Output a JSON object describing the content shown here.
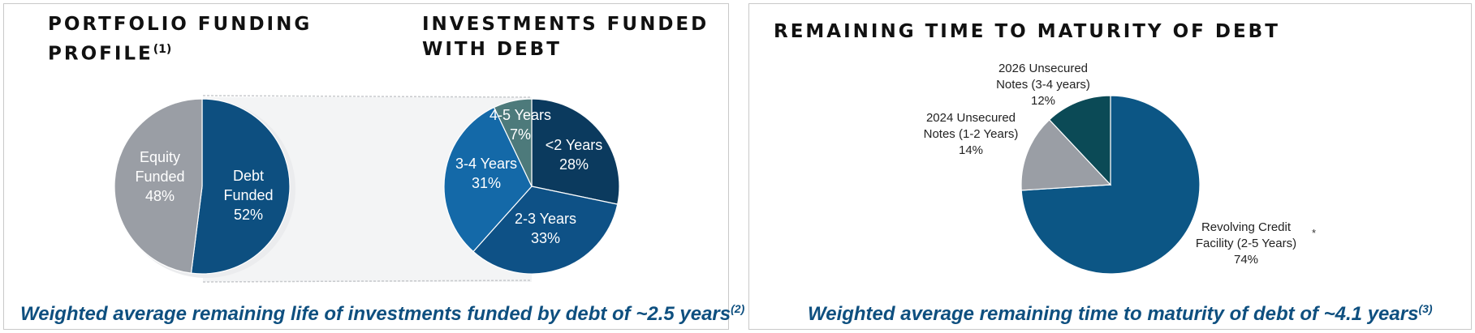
{
  "left_panel": {
    "funding_title_line1": "PORTFOLIO FUNDING",
    "funding_title_line2": "PROFILE",
    "funding_title_sup": "(1)",
    "debt_title_line1": "INVESTMENTS FUNDED",
    "debt_title_line2": "WITH DEBT",
    "footnote_text": "Weighted average remaining life of investments funded by debt of ~2.5 years",
    "footnote_sup": "(2)"
  },
  "right_panel": {
    "title": "REMAINING TIME TO MATURITY OF DEBT",
    "footnote_text": "Weighted average remaining time to maturity of debt of ~4.1 years",
    "footnote_sup": "(3)",
    "asterisk": "*"
  },
  "chart_data": [
    {
      "type": "pie",
      "title": "PORTFOLIO FUNDING PROFILE(1)",
      "slices": [
        {
          "label": [
            "Debt",
            "Funded",
            "52%"
          ],
          "category": "Debt Funded",
          "value": 52,
          "color": "#0d4f80"
        },
        {
          "label": [
            "Equity",
            "Funded",
            "48%"
          ],
          "category": "Equity Funded",
          "value": 48,
          "color": "#9a9ea5"
        }
      ]
    },
    {
      "type": "pie",
      "title": "INVESTMENTS FUNDED WITH DEBT",
      "slices": [
        {
          "label": [
            "<2 Years",
            "28%"
          ],
          "category": "<2 Years",
          "value": 28,
          "color": "#0b3a5e"
        },
        {
          "label": [
            "2-3 Years",
            "33%"
          ],
          "category": "2-3 Years",
          "value": 33,
          "color": "#0e5186"
        },
        {
          "label": [
            "3-4 Years",
            "31%"
          ],
          "category": "3-4 Years",
          "value": 31,
          "color": "#1469a8"
        },
        {
          "label": [
            "4-5 Years",
            "7%"
          ],
          "category": "4-5 Years",
          "value": 7,
          "color": "#4d7a7b"
        }
      ]
    },
    {
      "type": "pie",
      "title": "REMAINING TIME TO MATURITY OF DEBT",
      "slices": [
        {
          "label": [
            "Revolving Credit",
            "Facility (2-5 Years)",
            "74%"
          ],
          "category": "Revolving Credit Facility (2-5 Years)",
          "value": 74,
          "color": "#0c5685"
        },
        {
          "label": [
            "2024 Unsecured",
            "Notes (1-2 Years)",
            "14%"
          ],
          "category": "2024 Unsecured Notes (1-2 Years)",
          "value": 14,
          "color": "#9a9ea5"
        },
        {
          "label": [
            "2026 Unsecured",
            "Notes (3-4 years)",
            "12%"
          ],
          "category": "2026 Unsecured Notes (3-4 years)",
          "value": 12,
          "color": "#0b4a56"
        }
      ]
    }
  ]
}
